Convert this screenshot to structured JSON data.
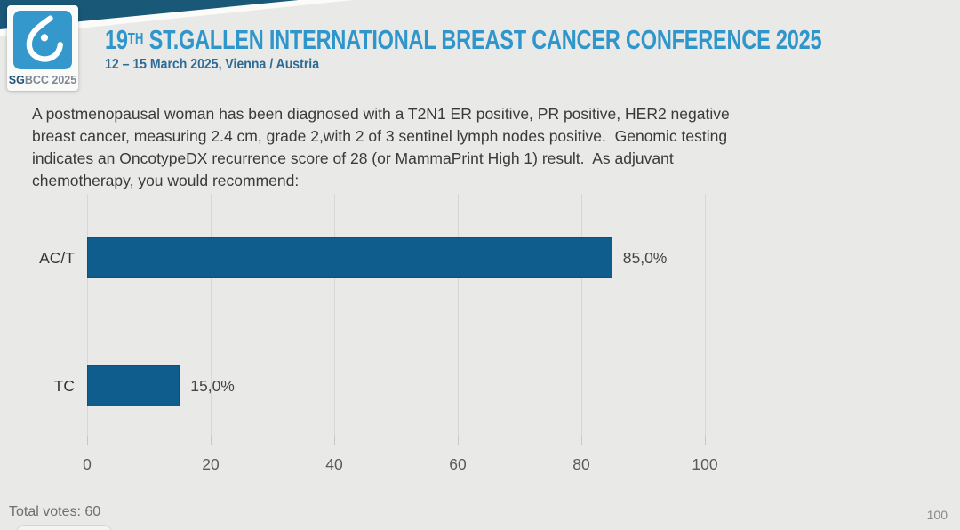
{
  "header": {
    "logo_bold": "SG",
    "logo_rest": "BCC 2025",
    "title_num": "19",
    "title_sup": "TH",
    "title_rest": " ST.GALLEN INTERNATIONAL BREAST CANCER CONFERENCE 2025",
    "subtitle": "12 – 15 March 2025, Vienna / Austria"
  },
  "question": {
    "lines": [
      "A postmenopausal woman has been diagnosed with a T2N1 ER positive, PR positive, HER2 negative",
      "breast cancer, measuring 2.4 cm, grade 2,with 2 of 3 sentinel lymph nodes positive.  Genomic testing",
      "indicates an OncotypeDX recurrence score of 28 (or MammaPrint High 1) result.  As adjuvant",
      "chemotherapy, you would recommend:"
    ]
  },
  "chart_data": {
    "type": "bar",
    "orientation": "horizontal",
    "categories": [
      "AC/T",
      "TC"
    ],
    "values": [
      85.0,
      15.0
    ],
    "value_labels": [
      "85,0%",
      "15,0%"
    ],
    "xlim": [
      0,
      100
    ],
    "xticks": [
      0,
      20,
      40,
      60,
      80,
      100
    ],
    "bar_color": "#0f5d8c",
    "grid": true,
    "legend": false,
    "title": "",
    "xlabel": "",
    "ylabel": ""
  },
  "footer": {
    "total_votes": "Total votes: 60",
    "page_number": "100"
  },
  "colors": {
    "background": "#e9e9e8",
    "ribbon_navy": "#195877",
    "title_blue": "#2f96cb",
    "subtitle_blue": "#2e6b94",
    "logo_blue": "#3598cc",
    "bar_blue": "#0f5d8c"
  }
}
